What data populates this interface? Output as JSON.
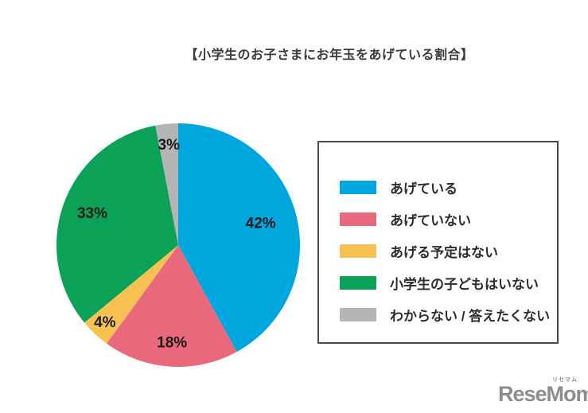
{
  "page": {
    "background_color": "#ffffff"
  },
  "chart_data": {
    "type": "pie",
    "title": "【小学生のお子さまにお年玉をあげている割合】",
    "unit": "%",
    "direction": "clockwise",
    "start_angle_deg": 0,
    "legend_position": "right",
    "value_label_color": "#1a1a1a",
    "value_label_font_px": 19,
    "slices": [
      {
        "label": "あげている",
        "value": 42,
        "display": "42%",
        "color": "#00a7df",
        "label_r": 0.7
      },
      {
        "label": "あげていない",
        "value": 18,
        "display": "18%",
        "color": "#e9687c",
        "label_r": 0.81
      },
      {
        "label": "あげる予定はない",
        "value": 4,
        "display": "4%",
        "color": "#f8c253",
        "label_r": 0.88
      },
      {
        "label": "小学生の子どもはいない",
        "value": 33,
        "display": "33%",
        "color": "#0ba156",
        "label_r": 0.75
      },
      {
        "label": "わからない / 答えたくない",
        "value": 3,
        "display": "3%",
        "color": "#b5b5b5",
        "label_r": 0.82
      }
    ]
  },
  "legend": {
    "border_color": "#4a4a4a"
  },
  "logo": {
    "text": "ReseMom.",
    "ruby": "リセマム",
    "color": "#8b8d92"
  }
}
